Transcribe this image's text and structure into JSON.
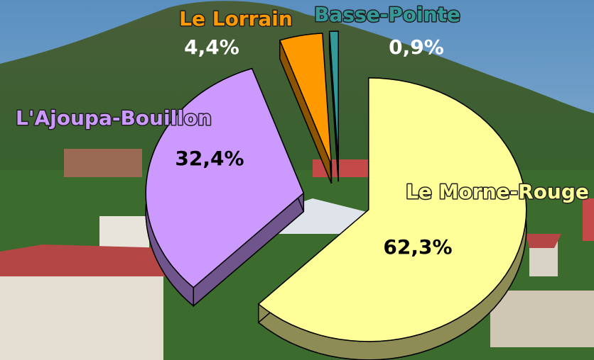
{
  "chart_data": {
    "type": "pie",
    "categories": [
      "Le Morne-Rouge",
      "L'Ajoupa-Bouillon",
      "Le Lorrain",
      "Basse-Pointe"
    ],
    "values": [
      62.3,
      32.4,
      4.4,
      0.9
    ],
    "value_labels": [
      "62,3%",
      "32,4%",
      "4,4%",
      "0,9%"
    ],
    "colors": [
      "#ffff99",
      "#cc99ff",
      "#ff9900",
      "#339999"
    ]
  }
}
